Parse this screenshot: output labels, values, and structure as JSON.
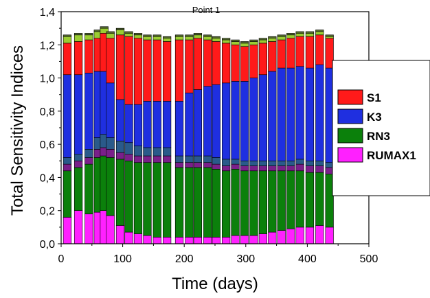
{
  "chart_data": {
    "type": "bar",
    "stacked": true,
    "title": "Point 1",
    "xlabel": "Time (days)",
    "ylabel": "Total Sensitivity Indices",
    "xlim": [
      0,
      500
    ],
    "ylim": [
      0,
      1.4
    ],
    "x_ticks": [
      "0",
      "100",
      "200",
      "300",
      "400",
      "500"
    ],
    "y_ticks": [
      "0,0",
      "0,2",
      "0,4",
      "0,6",
      "0,8",
      "1,0",
      "1,2",
      "1,4"
    ],
    "legend_position": "right",
    "x": [
      10,
      28,
      45,
      60,
      70,
      80,
      96,
      110,
      125,
      140,
      156,
      172,
      192,
      208,
      222,
      238,
      252,
      268,
      283,
      298,
      313,
      328,
      343,
      358,
      373,
      388,
      404,
      420,
      436
    ],
    "series": [
      {
        "name": "RUMAX1",
        "color": "#ff20ff",
        "values": [
          0.16,
          0.2,
          0.18,
          0.19,
          0.2,
          0.17,
          0.11,
          0.07,
          0.06,
          0.05,
          0.04,
          0.04,
          0.04,
          0.04,
          0.04,
          0.04,
          0.04,
          0.04,
          0.05,
          0.05,
          0.05,
          0.06,
          0.07,
          0.08,
          0.09,
          0.1,
          0.1,
          0.11,
          0.1
        ]
      },
      {
        "name": "RN3",
        "color": "#0b800b",
        "values": [
          0.28,
          0.26,
          0.3,
          0.33,
          0.33,
          0.35,
          0.4,
          0.43,
          0.43,
          0.44,
          0.45,
          0.45,
          0.42,
          0.42,
          0.42,
          0.42,
          0.41,
          0.4,
          0.4,
          0.39,
          0.39,
          0.38,
          0.37,
          0.36,
          0.35,
          0.34,
          0.33,
          0.32,
          0.32
        ]
      },
      {
        "name": "",
        "color": "#7a1f8a",
        "values": [
          0.04,
          0.04,
          0.04,
          0.05,
          0.05,
          0.05,
          0.04,
          0.04,
          0.04,
          0.04,
          0.04,
          0.04,
          0.03,
          0.03,
          0.03,
          0.03,
          0.03,
          0.03,
          0.03,
          0.03,
          0.03,
          0.03,
          0.03,
          0.03,
          0.03,
          0.04,
          0.04,
          0.04,
          0.04
        ]
      },
      {
        "name": "",
        "color": "#2a5a8a",
        "values": [
          0.04,
          0.04,
          0.05,
          0.07,
          0.08,
          0.07,
          0.07,
          0.07,
          0.06,
          0.05,
          0.05,
          0.05,
          0.04,
          0.04,
          0.04,
          0.04,
          0.04,
          0.04,
          0.03,
          0.03,
          0.03,
          0.03,
          0.03,
          0.03,
          0.03,
          0.03,
          0.03,
          0.03,
          0.03
        ]
      },
      {
        "name": "K3",
        "color": "#1f2fe0",
        "values": [
          0.5,
          0.48,
          0.46,
          0.4,
          0.38,
          0.33,
          0.25,
          0.23,
          0.25,
          0.28,
          0.28,
          0.28,
          0.33,
          0.38,
          0.4,
          0.42,
          0.44,
          0.46,
          0.47,
          0.48,
          0.5,
          0.52,
          0.54,
          0.56,
          0.56,
          0.56,
          0.56,
          0.58,
          0.57
        ]
      },
      {
        "name": "S1",
        "color": "#ff1a1a",
        "values": [
          0.19,
          0.2,
          0.2,
          0.2,
          0.23,
          0.27,
          0.39,
          0.41,
          0.4,
          0.37,
          0.37,
          0.36,
          0.37,
          0.32,
          0.31,
          0.28,
          0.26,
          0.24,
          0.22,
          0.21,
          0.2,
          0.19,
          0.18,
          0.17,
          0.18,
          0.18,
          0.19,
          0.18,
          0.18
        ]
      },
      {
        "name": "",
        "color": "#9acd32",
        "values": [
          0.04,
          0.04,
          0.03,
          0.04,
          0.03,
          0.03,
          0.03,
          0.02,
          0.02,
          0.02,
          0.02,
          0.02,
          0.02,
          0.02,
          0.02,
          0.02,
          0.02,
          0.02,
          0.02,
          0.02,
          0.02,
          0.02,
          0.02,
          0.02,
          0.02,
          0.02,
          0.02,
          0.02,
          0.01
        ]
      },
      {
        "name": "",
        "color": "#556b2f",
        "values": [
          0.01,
          0.01,
          0.01,
          0.01,
          0.01,
          0.01,
          0.01,
          0.01,
          0.01,
          0.01,
          0.01,
          0.01,
          0.01,
          0.01,
          0.01,
          0.01,
          0.01,
          0.01,
          0.01,
          0.01,
          0.01,
          0.01,
          0.01,
          0.01,
          0.01,
          0.01,
          0.01,
          0.01,
          0.01
        ]
      }
    ],
    "legend": [
      {
        "label": "S1",
        "color": "#ff1a1a"
      },
      {
        "label": "K3",
        "color": "#1f2fe0"
      },
      {
        "label": "RN3",
        "color": "#0b800b"
      },
      {
        "label": "RUMAX1",
        "color": "#ff20ff"
      }
    ]
  }
}
